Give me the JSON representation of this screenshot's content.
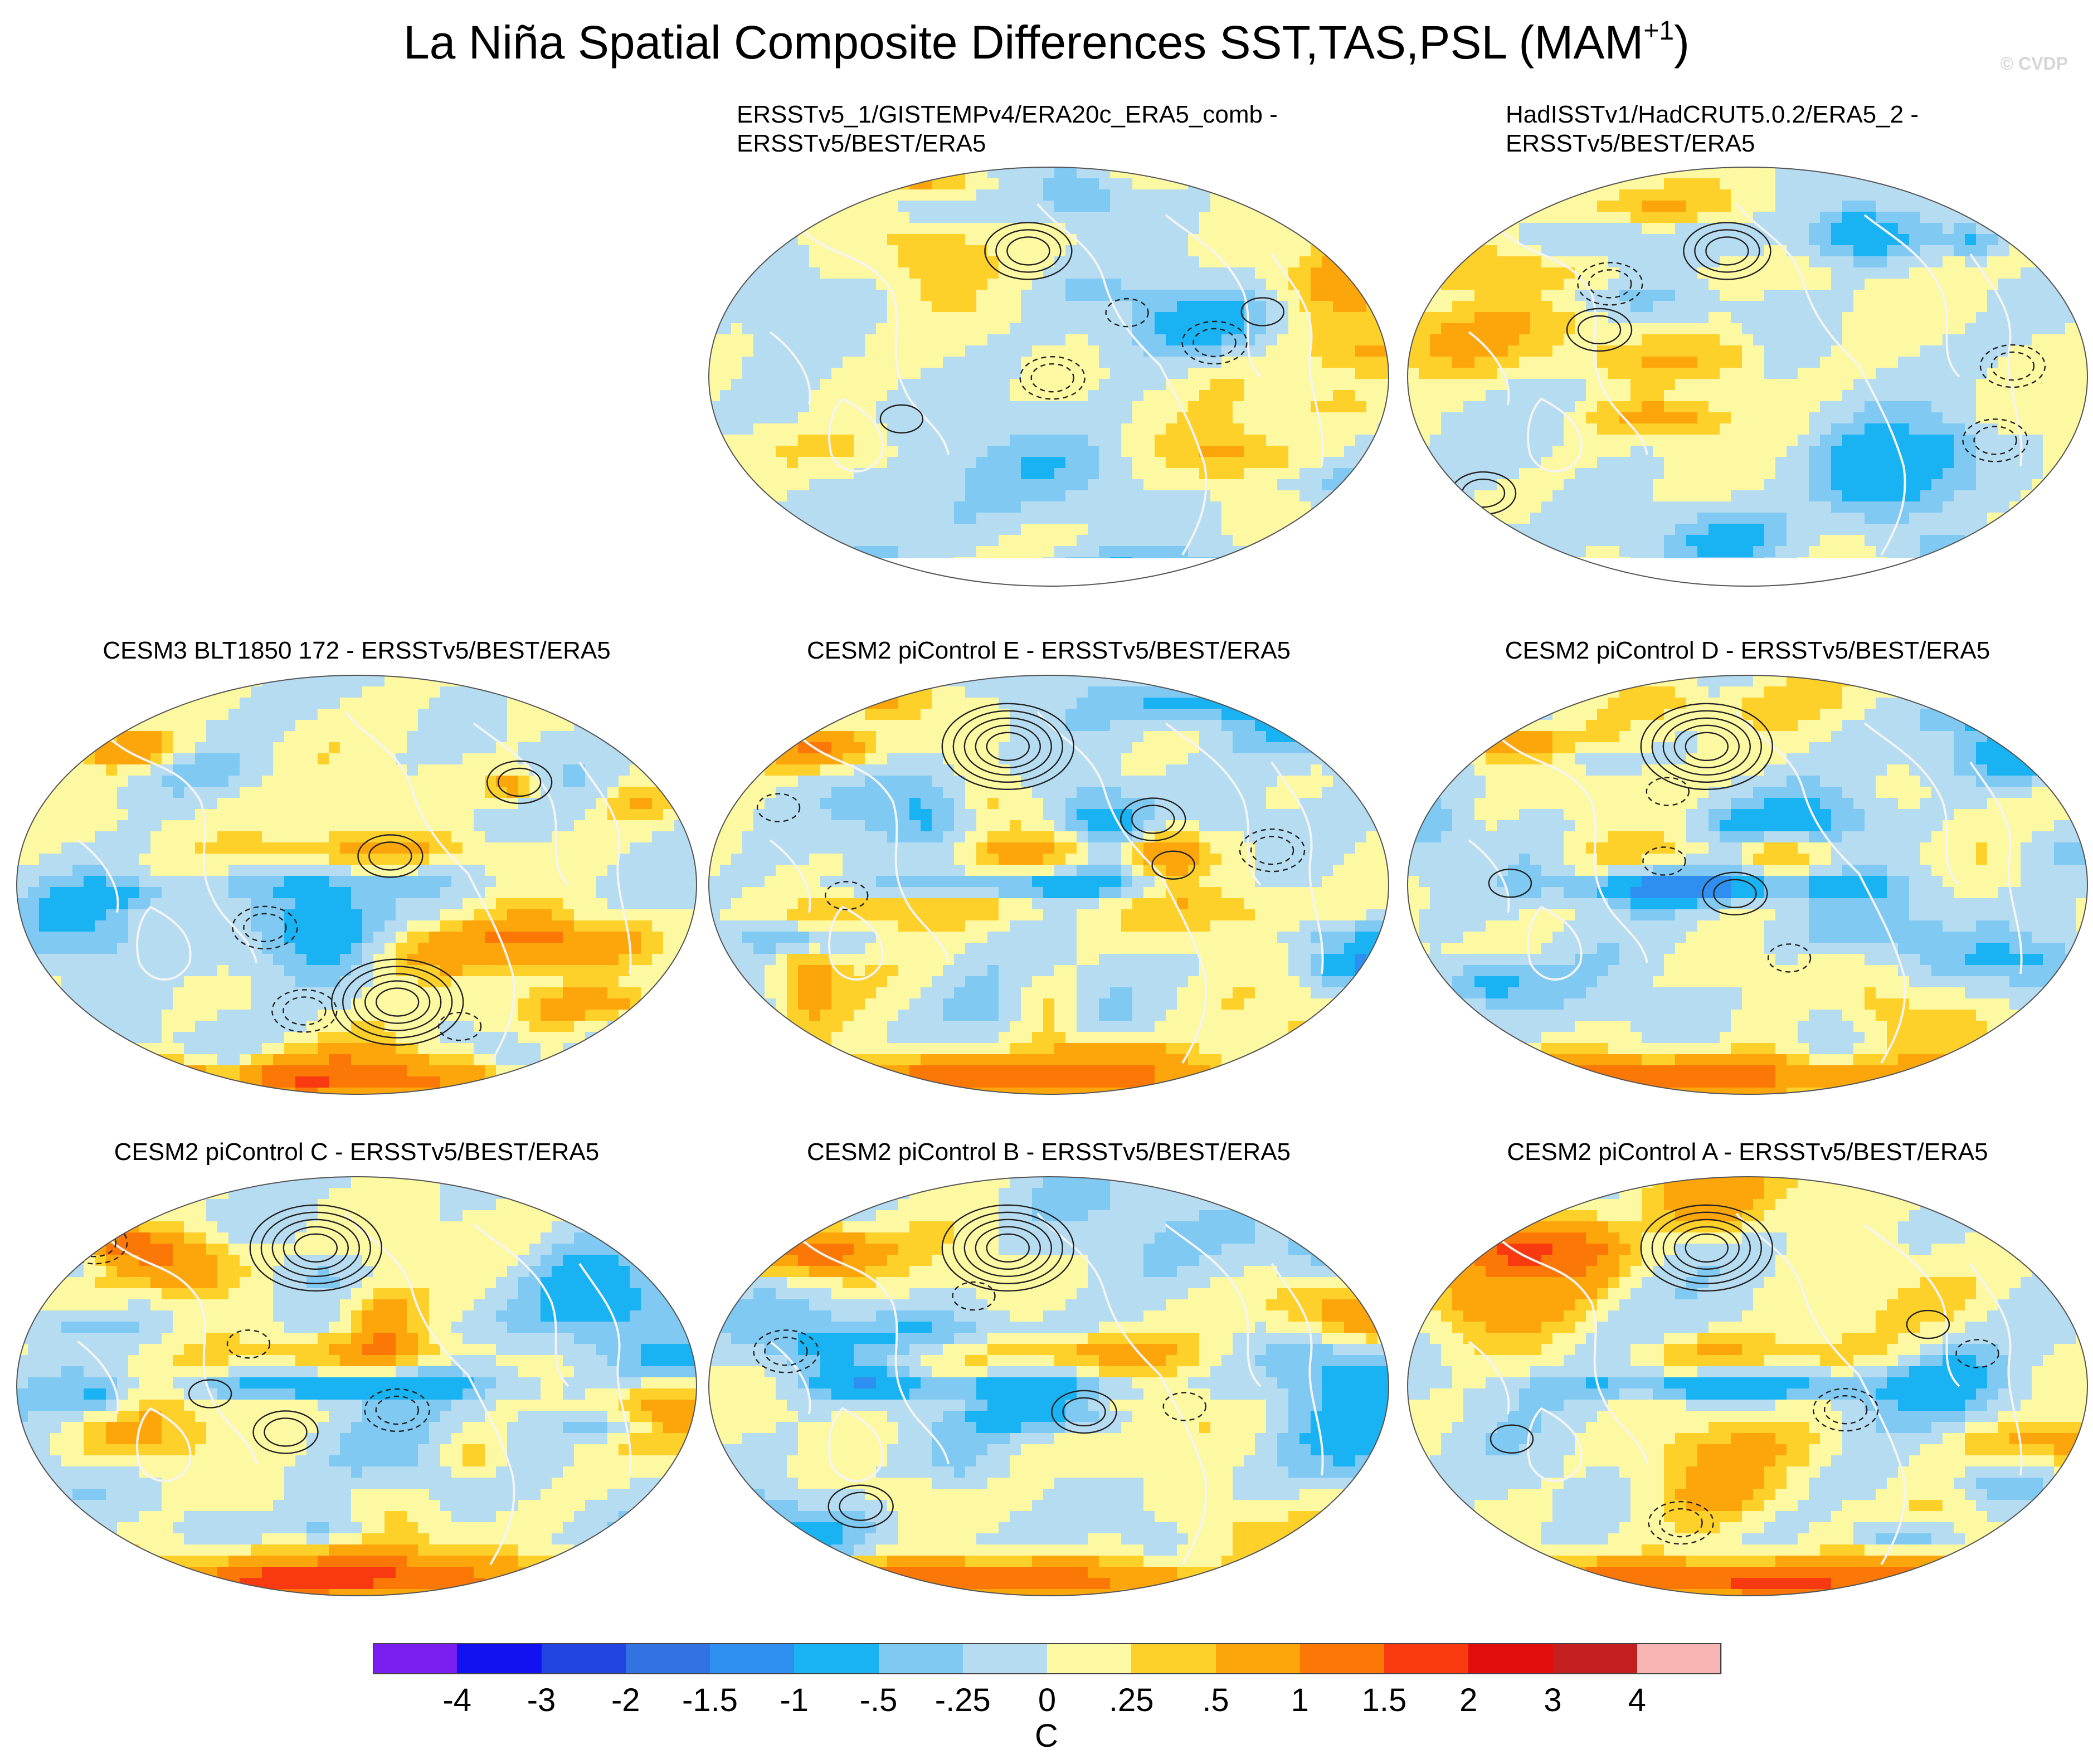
{
  "figure": {
    "title_main": "La Niña Spatial Composite Differences SST,TAS,PSL (MAM",
    "title_sup": "+1",
    "title_close": ")",
    "watermark": "© CVDP"
  },
  "panels": [
    {
      "id": "p1",
      "title": "ERSSTv5_1/GISTEMPv4/ERA20c_ERA5_comb -\nERSSTv5/BEST/ERA5",
      "seed": 3,
      "variant": "obs"
    },
    {
      "id": "p2",
      "title": "HadISSTv1/HadCRUT5.0.2/ERA5_2 -\nERSSTv5/BEST/ERA5",
      "seed": 7,
      "variant": "obs"
    },
    {
      "id": "p3",
      "title": "CESM3 BLT1850 172 - ERSSTv5/BEST/ERA5",
      "seed": 11,
      "variant": "cesm3"
    },
    {
      "id": "p4",
      "title": "CESM2 piControl E - ERSSTv5/BEST/ERA5",
      "seed": 13,
      "variant": "model"
    },
    {
      "id": "p5",
      "title": "CESM2 piControl D - ERSSTv5/BEST/ERA5",
      "seed": 17,
      "variant": "model"
    },
    {
      "id": "p6",
      "title": "CESM2 piControl C - ERSSTv5/BEST/ERA5",
      "seed": 19,
      "variant": "model"
    },
    {
      "id": "p7",
      "title": "CESM2 piControl B - ERSSTv5/BEST/ERA5",
      "seed": 23,
      "variant": "model"
    },
    {
      "id": "p8",
      "title": "CESM2 piControl A - ERSSTv5/BEST/ERA5",
      "seed": 29,
      "variant": "model"
    }
  ],
  "colorbar": {
    "colors": [
      "#7a1ff0",
      "#1212f0",
      "#2244e0",
      "#3372e3",
      "#2f8ff0",
      "#19b2f2",
      "#7fc9f3",
      "#b6dcf2",
      "#fdf8a2",
      "#fdd02a",
      "#fda60c",
      "#fb7806",
      "#f93a10",
      "#e20d0d",
      "#c41f1f",
      "#f9b4b4"
    ],
    "labels": [
      "-4",
      "-3",
      "-2",
      "-1.5",
      "-1",
      "-.5",
      "-.25",
      "0",
      ".25",
      ".5",
      "1",
      "1.5",
      "2",
      "3",
      "4"
    ],
    "units": "C"
  }
}
